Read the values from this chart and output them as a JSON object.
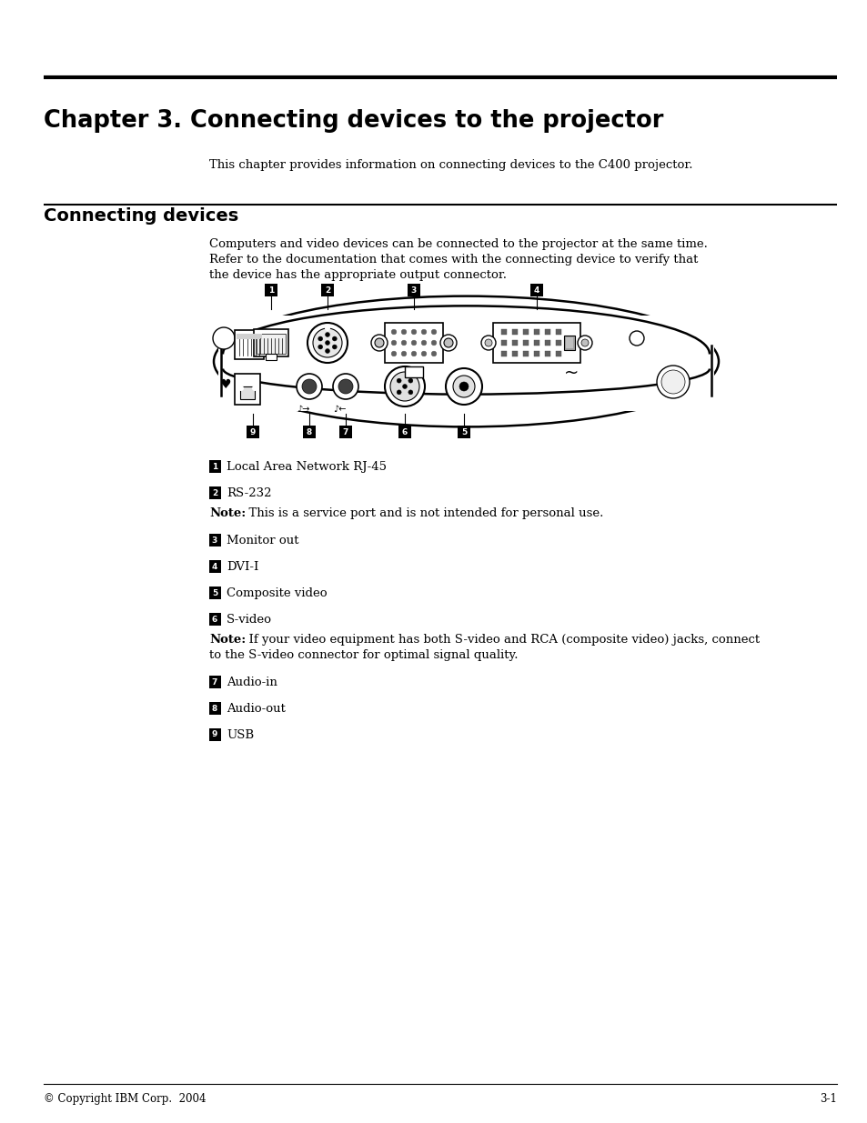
{
  "title": "Chapter 3. Connecting devices to the projector",
  "subtitle": "This chapter provides information on connecting devices to the C400 projector.",
  "section_title": "Connecting devices",
  "body_line1": "Computers and video devices can be connected to the projector at the same time.",
  "body_line2": "Refer to the documentation that comes with the connecting device to verify that",
  "body_line3": "the device has the appropriate output connector.",
  "note1_bold": "Note:",
  "note1_text": "  This is a service port and is not intended for personal use.",
  "note2_bold": "Note:",
  "note2_text": "  If your video equipment has both S-video and RCA (composite video) jacks, connect",
  "note2_line2": "to the S-video connector for optimal signal quality.",
  "items": [
    {
      "num": "1",
      "label": "Local Area Network RJ-45"
    },
    {
      "num": "2",
      "label": "RS-232"
    },
    {
      "num": "3",
      "label": "Monitor out"
    },
    {
      "num": "4",
      "label": "DVI-I"
    },
    {
      "num": "5",
      "label": "Composite video"
    },
    {
      "num": "6",
      "label": "S-video"
    },
    {
      "num": "7",
      "label": "Audio-in"
    },
    {
      "num": "8",
      "label": "Audio-out"
    },
    {
      "num": "9",
      "label": "USB"
    }
  ],
  "footer_left": "© Copyright IBM Corp.  2004",
  "footer_right": "3-1",
  "bg_color": "#ffffff",
  "text_color": "#000000"
}
